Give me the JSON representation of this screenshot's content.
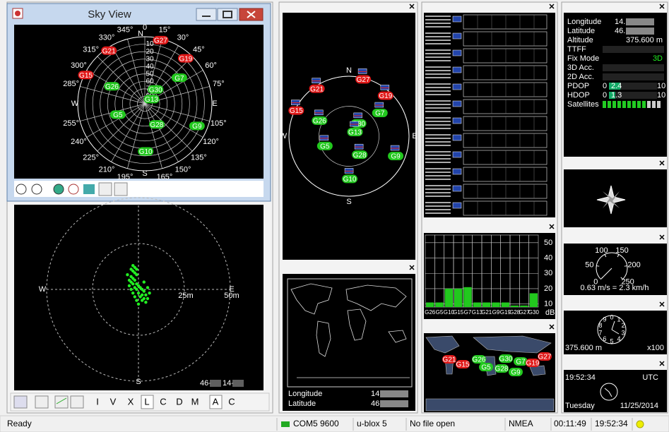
{
  "sky_view": {
    "title": "Sky View",
    "cardinal": [
      "N",
      "E",
      "S",
      "W"
    ],
    "azimuth_ticks": [
      0,
      {
        "value": 15,
        "label": "15°"
      },
      {
        "value": 30,
        "label": "30°"
      },
      {
        "value": 45,
        "label": "45°"
      },
      {
        "value": 60,
        "label": "60°"
      },
      {
        "value": 75,
        "label": "75°"
      },
      {
        "value": 105,
        "label": "105°"
      },
      {
        "value": 120,
        "label": "120°"
      },
      {
        "value": 135,
        "label": "135°"
      },
      {
        "value": 150,
        "label": "150°"
      },
      {
        "value": 165,
        "label": "165°"
      },
      {
        "value": 195,
        "label": "195°"
      },
      {
        "value": 210,
        "label": "210°"
      },
      {
        "value": 225,
        "label": "225°"
      },
      {
        "value": 240,
        "label": "240°"
      },
      {
        "value": 255,
        "label": "255°"
      },
      {
        "value": 285,
        "label": "285°"
      },
      {
        "value": 300,
        "label": "300°"
      },
      {
        "value": 315,
        "label": "315°"
      },
      {
        "value": 330,
        "label": "330°"
      },
      {
        "value": 345,
        "label": "345°"
      }
    ],
    "elevation_ticks": [
      10,
      20,
      30,
      40,
      50,
      60,
      70,
      80
    ],
    "satellites": [
      {
        "id": "G21",
        "azimuth": 326,
        "elevation": 4,
        "color": "#e01818"
      },
      {
        "id": "G27",
        "azimuth": 14,
        "elevation": 2,
        "color": "#e01818"
      },
      {
        "id": "G19",
        "azimuth": 42,
        "elevation": 8,
        "color": "#e01818"
      },
      {
        "id": "G15",
        "azimuth": 296,
        "elevation": 2,
        "color": "#e01818"
      },
      {
        "id": "G7",
        "azimuth": 53,
        "elevation": 32,
        "color": "#22c81e"
      },
      {
        "id": "G26",
        "azimuth": 298,
        "elevation": 40,
        "color": "#22c81e"
      },
      {
        "id": "G30",
        "azimuth": 37,
        "elevation": 66,
        "color": "#22c81e"
      },
      {
        "id": "G13",
        "azimuth": 55,
        "elevation": 79,
        "color": "#22c81e"
      },
      {
        "id": "G5",
        "azimuth": 248,
        "elevation": 51,
        "color": "#22c81e"
      },
      {
        "id": "G28",
        "azimuth": 150,
        "elevation": 58,
        "color": "#22c81e"
      },
      {
        "id": "G9",
        "azimuth": 113,
        "elevation": 14,
        "color": "#22c81e"
      },
      {
        "id": "G10",
        "azimuth": 179,
        "elevation": 26,
        "color": "#22c81e"
      }
    ]
  },
  "deviation_map": {
    "cardinal": [
      "W",
      "E",
      "S"
    ],
    "rings": [
      {
        "value": 25,
        "label": "25m"
      },
      {
        "value": 50,
        "label": "50m"
      }
    ],
    "position": [
      "46-",
      "14-"
    ],
    "points_e": [
      -3,
      -2,
      -4,
      -1,
      -3,
      -2,
      -1,
      -4,
      -3,
      -5,
      -2,
      -4,
      -3,
      -1,
      -5,
      -2,
      0,
      1,
      -4,
      -1,
      2,
      3,
      -3,
      0,
      2,
      4,
      -2,
      1,
      3,
      5,
      -1,
      2,
      4,
      0,
      6,
      5,
      3,
      -6
    ],
    "points_n": [
      13,
      12,
      11,
      11,
      10,
      9,
      8,
      7,
      6,
      5,
      5,
      4,
      3,
      3,
      2,
      1,
      2,
      1,
      0,
      0,
      0,
      -1,
      -2,
      -2,
      -3,
      -3,
      -4,
      -4,
      -5,
      -5,
      -6,
      -6,
      -7,
      -8,
      -2,
      1,
      4,
      8
    ],
    "toolbar": [
      "I",
      "V",
      "X",
      "L",
      "C",
      "D",
      "M",
      "A",
      "C"
    ]
  },
  "world_map": {
    "rows": [
      {
        "label": "Longitude",
        "value": "14."
      },
      {
        "label": "Latitude",
        "value": "46."
      }
    ]
  },
  "signal_chart": {
    "categories": [
      "G26",
      "G5",
      "G10",
      "G15",
      "G7",
      "G13",
      "G21",
      "G9",
      "G19",
      "G28",
      "G27",
      "G30"
    ],
    "values": [
      11,
      11,
      20,
      20,
      21,
      11,
      11,
      11,
      11,
      9,
      9,
      17
    ],
    "color": "#22c81e",
    "ylim": [
      8,
      55
    ],
    "yticks": [
      10,
      20,
      30,
      40,
      50
    ],
    "unit": "dB"
  },
  "nav_status": {
    "rows": [
      {
        "label": "Longitude",
        "value": "14."
      },
      {
        "label": "Latitude",
        "value": "46."
      },
      {
        "label": "Altitude",
        "value": "375.600 m"
      },
      {
        "label": "TTFF",
        "value": ""
      },
      {
        "label": "Fix Mode",
        "value": "3D"
      },
      {
        "label": "3D Acc.",
        "value": ""
      },
      {
        "label": "2D Acc.",
        "value": ""
      }
    ],
    "dops": [
      {
        "label": "PDOP",
        "min": 0,
        "value": 2.4,
        "max": 10
      },
      {
        "label": "HDOP",
        "min": 0,
        "value": 1.3,
        "max": 10
      }
    ],
    "satellites_label": "Satellites",
    "satellites_used": 9,
    "satellites_total": 12
  },
  "speed": {
    "ticks": [
      0,
      50,
      100,
      150,
      200,
      250
    ],
    "text": "0.63 m/s = 2.3 km/h"
  },
  "altimeter": {
    "ticks": [
      0,
      1,
      2,
      3,
      4,
      5,
      6,
      7,
      8,
      9
    ],
    "text": "375.600 m",
    "scale": "x100"
  },
  "clock": {
    "time": "19:52:34",
    "zone": "UTC",
    "day": "Tuesday",
    "date": "11/25/2014"
  },
  "status_bar": [
    "Ready",
    "COM5 9600",
    "u-blox 5",
    "No file open",
    "NMEA",
    "00:11:49",
    "19:52:34"
  ]
}
